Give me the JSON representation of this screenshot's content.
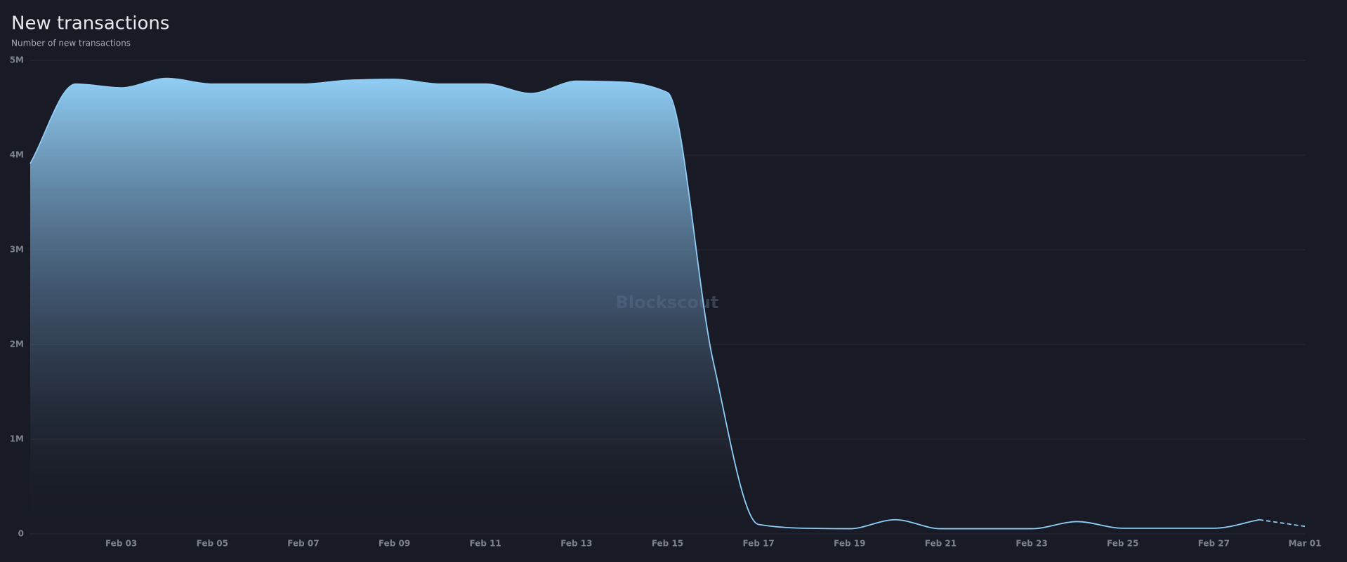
{
  "chart_data": {
    "type": "line",
    "title": "New transactions",
    "subtitle": "Number of new transactions",
    "watermark": "Blockscout",
    "x": [
      "Feb 01",
      "Feb 02",
      "Feb 03",
      "Feb 04",
      "Feb 05",
      "Feb 06",
      "Feb 07",
      "Feb 08",
      "Feb 09",
      "Feb 10",
      "Feb 11",
      "Feb 12",
      "Feb 13",
      "Feb 14",
      "Feb 15",
      "Feb 16",
      "Feb 17",
      "Feb 18",
      "Feb 19",
      "Feb 20",
      "Feb 21",
      "Feb 22",
      "Feb 23",
      "Feb 24",
      "Feb 25",
      "Feb 26",
      "Feb 27",
      "Feb 28",
      "Mar 01"
    ],
    "series": [
      {
        "name": "New transactions",
        "color": "#90cdf4",
        "values": [
          3910000,
          4750000,
          4710000,
          4810000,
          4750000,
          4750000,
          4750000,
          4790000,
          4800000,
          4750000,
          4750000,
          4650000,
          4780000,
          4770000,
          4660000,
          1830000,
          100000,
          60000,
          55000,
          150000,
          55000,
          55000,
          55000,
          130000,
          60000,
          60000,
          60000,
          150000,
          80000
        ]
      }
    ],
    "xticks": [
      "Feb 03",
      "Feb 05",
      "Feb 07",
      "Feb 09",
      "Feb 11",
      "Feb 13",
      "Feb 15",
      "Feb 17",
      "Feb 19",
      "Feb 21",
      "Feb 23",
      "Feb 25",
      "Feb 27",
      "Mar 01"
    ],
    "ylim": [
      0,
      5000000
    ],
    "yticks": [
      0,
      {
        "value": 1000000,
        "label": "1M"
      },
      {
        "value": 2000000,
        "label": "2M"
      },
      {
        "value": 3000000,
        "label": "3M"
      },
      {
        "value": 4000000,
        "label": "4M"
      },
      {
        "value": 5000000,
        "label": "5M"
      }
    ],
    "grid": true,
    "dashed_last_segment": true
  }
}
